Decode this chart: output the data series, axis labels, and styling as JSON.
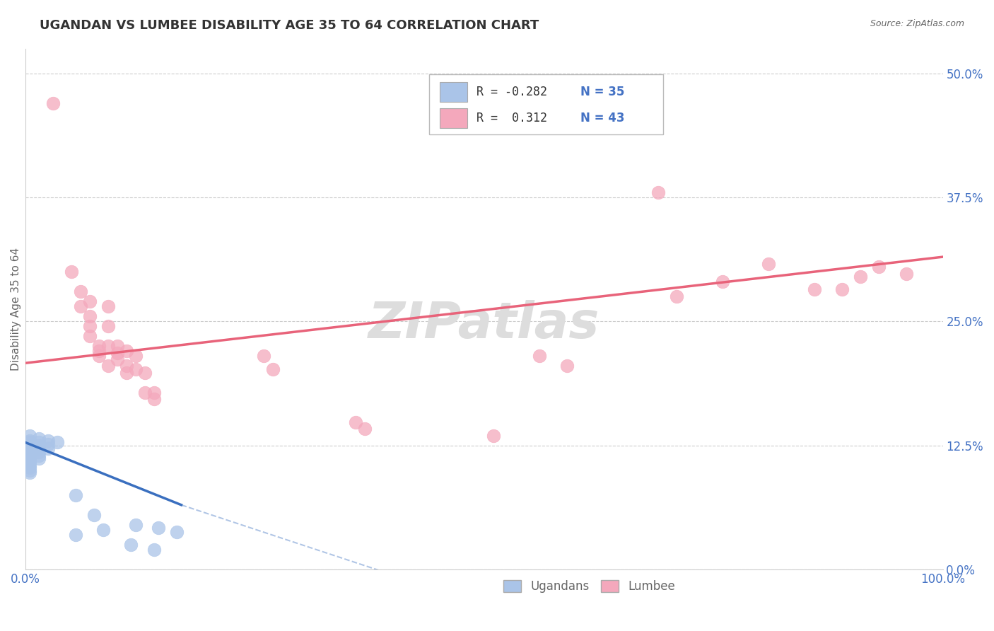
{
  "title": "UGANDAN VS LUMBEE DISABILITY AGE 35 TO 64 CORRELATION CHART",
  "source": "Source: ZipAtlas.com",
  "ylabel_label": "Disability Age 35 to 64",
  "legend_label_ugandans": "Ugandans",
  "legend_label_lumbee": "Lumbee",
  "ugandan_color": "#aac4e8",
  "lumbee_color": "#f4a8bc",
  "ugandan_line_color": "#3a6fbf",
  "lumbee_line_color": "#e8637a",
  "ugandan_scatter": [
    [
      0.005,
      0.135
    ],
    [
      0.005,
      0.13
    ],
    [
      0.005,
      0.128
    ],
    [
      0.005,
      0.125
    ],
    [
      0.005,
      0.122
    ],
    [
      0.005,
      0.12
    ],
    [
      0.005,
      0.118
    ],
    [
      0.005,
      0.115
    ],
    [
      0.005,
      0.113
    ],
    [
      0.005,
      0.11
    ],
    [
      0.005,
      0.108
    ],
    [
      0.005,
      0.105
    ],
    [
      0.005,
      0.103
    ],
    [
      0.005,
      0.1
    ],
    [
      0.005,
      0.098
    ],
    [
      0.015,
      0.132
    ],
    [
      0.015,
      0.128
    ],
    [
      0.015,
      0.125
    ],
    [
      0.015,
      0.122
    ],
    [
      0.015,
      0.118
    ],
    [
      0.015,
      0.115
    ],
    [
      0.015,
      0.112
    ],
    [
      0.025,
      0.13
    ],
    [
      0.025,
      0.126
    ],
    [
      0.025,
      0.122
    ],
    [
      0.035,
      0.128
    ],
    [
      0.055,
      0.075
    ],
    [
      0.075,
      0.055
    ],
    [
      0.085,
      0.04
    ],
    [
      0.12,
      0.045
    ],
    [
      0.145,
      0.042
    ],
    [
      0.165,
      0.038
    ],
    [
      0.055,
      0.035
    ],
    [
      0.115,
      0.025
    ],
    [
      0.14,
      0.02
    ]
  ],
  "lumbee_scatter": [
    [
      0.03,
      0.47
    ],
    [
      0.05,
      0.3
    ],
    [
      0.06,
      0.28
    ],
    [
      0.06,
      0.265
    ],
    [
      0.07,
      0.27
    ],
    [
      0.07,
      0.255
    ],
    [
      0.07,
      0.245
    ],
    [
      0.07,
      0.235
    ],
    [
      0.08,
      0.225
    ],
    [
      0.08,
      0.22
    ],
    [
      0.08,
      0.215
    ],
    [
      0.09,
      0.265
    ],
    [
      0.09,
      0.245
    ],
    [
      0.09,
      0.225
    ],
    [
      0.09,
      0.205
    ],
    [
      0.1,
      0.225
    ],
    [
      0.1,
      0.218
    ],
    [
      0.1,
      0.212
    ],
    [
      0.11,
      0.22
    ],
    [
      0.11,
      0.205
    ],
    [
      0.11,
      0.198
    ],
    [
      0.12,
      0.215
    ],
    [
      0.12,
      0.202
    ],
    [
      0.13,
      0.198
    ],
    [
      0.13,
      0.178
    ],
    [
      0.14,
      0.178
    ],
    [
      0.14,
      0.172
    ],
    [
      0.26,
      0.215
    ],
    [
      0.27,
      0.202
    ],
    [
      0.36,
      0.148
    ],
    [
      0.37,
      0.142
    ],
    [
      0.51,
      0.135
    ],
    [
      0.56,
      0.215
    ],
    [
      0.59,
      0.205
    ],
    [
      0.69,
      0.38
    ],
    [
      0.71,
      0.275
    ],
    [
      0.76,
      0.29
    ],
    [
      0.81,
      0.308
    ],
    [
      0.86,
      0.282
    ],
    [
      0.89,
      0.282
    ],
    [
      0.91,
      0.295
    ],
    [
      0.93,
      0.305
    ],
    [
      0.96,
      0.298
    ]
  ],
  "ugandan_line_solid": [
    [
      0.0,
      0.128
    ],
    [
      0.17,
      0.065
    ]
  ],
  "ugandan_line_dash": [
    [
      0.17,
      0.065
    ],
    [
      0.52,
      -0.042
    ]
  ],
  "lumbee_line": [
    [
      0.0,
      0.208
    ],
    [
      1.0,
      0.315
    ]
  ],
  "xlim": [
    0.0,
    1.0
  ],
  "ylim": [
    0.0,
    0.525
  ],
  "yticks": [
    0.0,
    0.125,
    0.25,
    0.375,
    0.5
  ],
  "ytick_labels": [
    "0.0%",
    "12.5%",
    "25.0%",
    "37.5%",
    "50.0%"
  ],
  "xticks": [
    0.0,
    0.25,
    0.5,
    0.75,
    1.0
  ],
  "xtick_labels": [
    "0.0%",
    "",
    "",
    "",
    "100.0%"
  ],
  "title_color": "#333333",
  "tick_color": "#4472c4",
  "ylabel_color": "#666666",
  "grid_color": "#cccccc",
  "source_color": "#666666",
  "watermark_text": "ZIPatlas",
  "watermark_color": "#dddddd",
  "legend_r1": "R = -0.282",
  "legend_r2": "R =  0.312",
  "legend_n1": "N = 35",
  "legend_n2": "N = 43"
}
